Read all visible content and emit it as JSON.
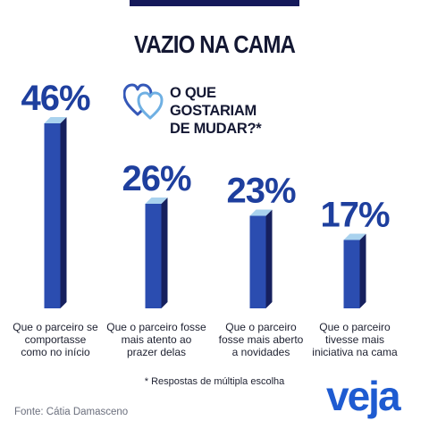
{
  "header": {
    "title": "VAZIO NA CAMA",
    "question": "O QUE GOSTARIAM DE MUDAR?*"
  },
  "icons": {
    "hearts": "two-hearts-icon"
  },
  "colors": {
    "bar_front": "#2b4db0",
    "bar_side": "#16205e",
    "bar_top": "#a9d2ee",
    "value": "#1e3f9e",
    "top_bar": "#15195a",
    "logo": "#1e5bd1"
  },
  "chart_data": {
    "type": "bar",
    "title": "VAZIO NA CAMA",
    "categories": [
      "Que o parceiro se comportasse como no início",
      "Que o parceiro fosse mais atento ao prazer delas",
      "Que o parceiro fosse mais aberto a novidades",
      "Que o parceiro tivesse mais iniciativa na cama"
    ],
    "category_lines": [
      [
        "Que o parceiro se",
        "comportasse",
        "como no início"
      ],
      [
        "Que o parceiro fosse",
        "mais atento ao",
        "prazer delas"
      ],
      [
        "Que o parceiro",
        "fosse mais aberto",
        "a novidades"
      ],
      [
        "Que o parceiro",
        "tivesse mais",
        "iniciativa na cama"
      ]
    ],
    "values": [
      46,
      26,
      23,
      17
    ],
    "value_labels": [
      "46%",
      "26%",
      "23%",
      "17%"
    ],
    "unit": "%",
    "ylim": [
      0,
      50
    ],
    "grid": false,
    "legend": "none"
  },
  "footer": {
    "note": "* Respostas de múltipla escolha",
    "source": "Fonte: Cátia Damasceno",
    "logo": "veja"
  }
}
